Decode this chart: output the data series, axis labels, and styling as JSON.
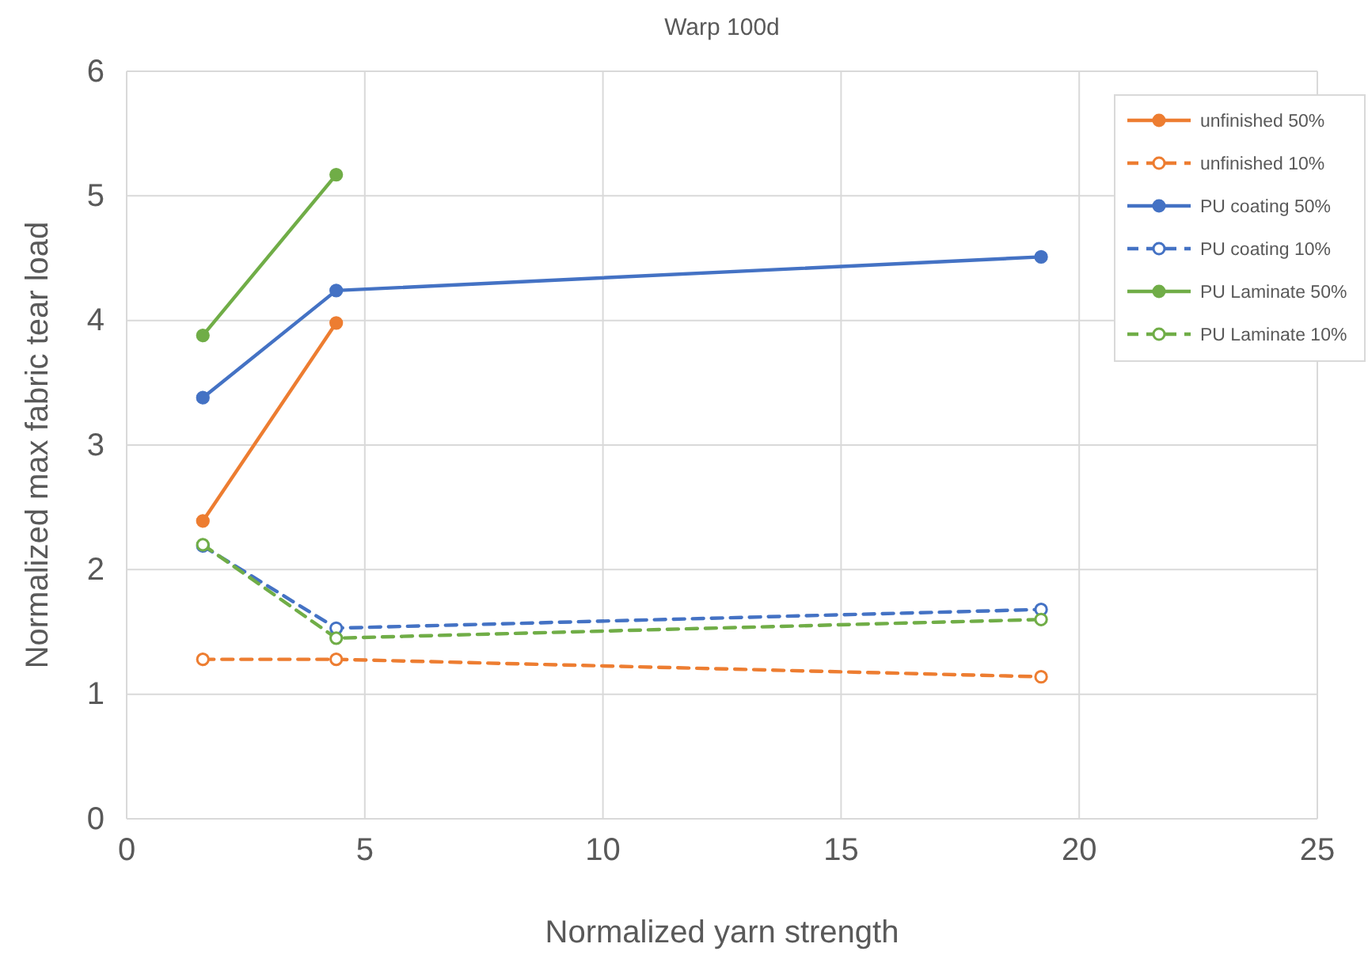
{
  "chart_data": {
    "type": "line",
    "title": "Warp 100d",
    "xlabel": "Normalized yarn strength",
    "ylabel": "Normalized max fabric tear load",
    "xlim": [
      0,
      25
    ],
    "xticks": [
      0,
      5,
      10,
      15,
      20,
      25
    ],
    "ylim": [
      0,
      6
    ],
    "yticks": [
      0,
      1,
      2,
      3,
      4,
      5,
      6
    ],
    "grid": true,
    "legend": "top right",
    "marker": "circle",
    "series": [
      {
        "name": "unfinished 50%",
        "color": "#ed7d31",
        "line_style": "solid",
        "x": [
          1.6,
          4.4
        ],
        "values": [
          2.39,
          3.98
        ]
      },
      {
        "name": "unfinished 10%",
        "color": "#ed7d31",
        "line_style": "dashed",
        "x": [
          1.6,
          4.4,
          19.2
        ],
        "values": [
          1.28,
          1.28,
          1.14
        ]
      },
      {
        "name": "PU coating 50%",
        "color": "#4472c4",
        "line_style": "solid",
        "x": [
          1.6,
          4.4,
          19.2
        ],
        "values": [
          3.38,
          4.24,
          4.51
        ]
      },
      {
        "name": "PU coating 10%",
        "color": "#4472c4",
        "line_style": "dashed",
        "x": [
          1.6,
          4.4,
          19.2
        ],
        "values": [
          2.19,
          1.53,
          1.68
        ]
      },
      {
        "name": "PU Laminate 50%",
        "color": "#70ad47",
        "line_style": "solid",
        "x": [
          1.6,
          4.4
        ],
        "values": [
          3.88,
          5.17
        ]
      },
      {
        "name": "PU Laminate 10%",
        "color": "#70ad47",
        "line_style": "dashed",
        "x": [
          1.6,
          4.4,
          19.2
        ],
        "values": [
          2.2,
          1.45,
          1.6
        ]
      }
    ]
  }
}
